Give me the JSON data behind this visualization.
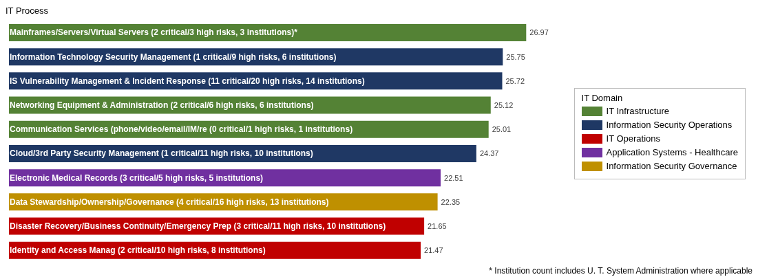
{
  "chart_data": {
    "type": "bar",
    "orientation": "horizontal",
    "stacked": true,
    "ylabel": "IT Process",
    "legend_title": "IT Domain",
    "categories": [
      "Mainframes/Servers/Virtual Servers (2 critical/3 high risks, 3 institutions)*",
      "Information Technology Security Management (1 critical/9 high risks, 6 institutions)",
      "IS Vulnerability Management & Incident Response (11 critical/20 high risks, 14 institutions)",
      "Networking Equipment & Administration (2 critical/6 high risks, 6 institutions)",
      "Communication Services (phone/video/email/IM/re (0 critical/1 high risks, 1 institutions)",
      "Cloud/3rd Party Security Management (1 critical/11 high risks, 10 institutions)",
      "Electronic Medical Records (3 critical/5 high risks, 5 institutions)",
      "Data Stewardship/Ownership/Governance (4 critical/16 high risks, 13 institutions)",
      "Disaster Recovery/Business Continuity/Emergency Prep (3 critical/11 high risks, 10 institutions)",
      "Identity and Access Manag (2 critical/10 high risks, 8 institutions)"
    ],
    "series": [
      {
        "name": "IT Infrastructure",
        "color": "#548235",
        "values": [
          26.97,
          null,
          null,
          25.12,
          25.01,
          null,
          null,
          null,
          null,
          null
        ]
      },
      {
        "name": "Information Security Operations",
        "color": "#1f3864",
        "values": [
          null,
          25.75,
          25.72,
          null,
          null,
          24.37,
          null,
          null,
          null,
          null
        ]
      },
      {
        "name": "IT Operations",
        "color": "#c00000",
        "values": [
          null,
          null,
          null,
          null,
          null,
          null,
          null,
          null,
          21.65,
          21.47
        ]
      },
      {
        "name": "Application Systems - Healthcare",
        "color": "#7030a0",
        "values": [
          null,
          null,
          null,
          null,
          null,
          null,
          22.51,
          null,
          null,
          null
        ]
      },
      {
        "name": "Information Security Governance",
        "color": "#bf9000",
        "values": [
          null,
          null,
          null,
          null,
          null,
          null,
          null,
          22.35,
          null,
          null
        ]
      }
    ],
    "legend": "right",
    "tick_labels": "y",
    "data_labels": true,
    "annotations": [
      "* Institution count includes U. T. System Administration where applicable"
    ]
  }
}
